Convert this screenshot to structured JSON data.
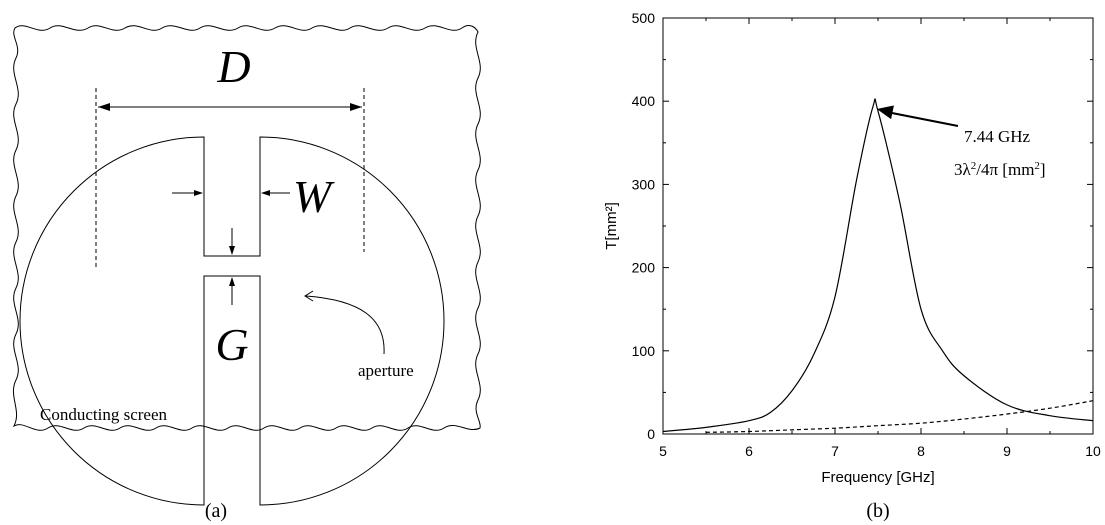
{
  "figure_a": {
    "label_D": "D",
    "label_W": "W",
    "label_G": "G",
    "label_aperture": "aperture",
    "label_screen": "Conducting screen",
    "caption": "(a)"
  },
  "figure_b": {
    "caption": "(b)"
  },
  "chart_data": {
    "type": "line",
    "xlabel": "Frequency [GHz]",
    "ylabel": "T[mm²]",
    "xlim": [
      5,
      10
    ],
    "ylim": [
      0,
      500
    ],
    "xticks": [
      5,
      6,
      7,
      8,
      9,
      10
    ],
    "yticks": [
      0,
      100,
      200,
      300,
      400,
      500
    ],
    "grid": false,
    "series": [
      {
        "style": "solid",
        "x": [
          5.0,
          5.5,
          6.0,
          6.25,
          6.5,
          6.75,
          7.0,
          7.25,
          7.44,
          7.5,
          7.75,
          8.0,
          8.25,
          8.5,
          9.0,
          9.5,
          10.0
        ],
        "y": [
          3,
          8,
          16,
          26,
          52,
          95,
          165,
          305,
          393,
          388,
          280,
          150,
          100,
          70,
          35,
          22,
          16
        ]
      },
      {
        "style": "dashed",
        "x": [
          5.5,
          6.0,
          6.5,
          7.0,
          7.5,
          8.0,
          8.5,
          9.0,
          9.5,
          10.0
        ],
        "y": [
          2,
          3,
          5,
          7,
          10,
          13,
          18,
          24,
          31,
          40
        ]
      }
    ],
    "annotation": {
      "x": 7.44,
      "y": 393,
      "line1": "7.44 GHz",
      "line2_prefix": "3λ",
      "line2_sup": "2",
      "line2_mid": "/4π [mm",
      "line2_sup2": "2",
      "line2_suffix": "]"
    }
  }
}
